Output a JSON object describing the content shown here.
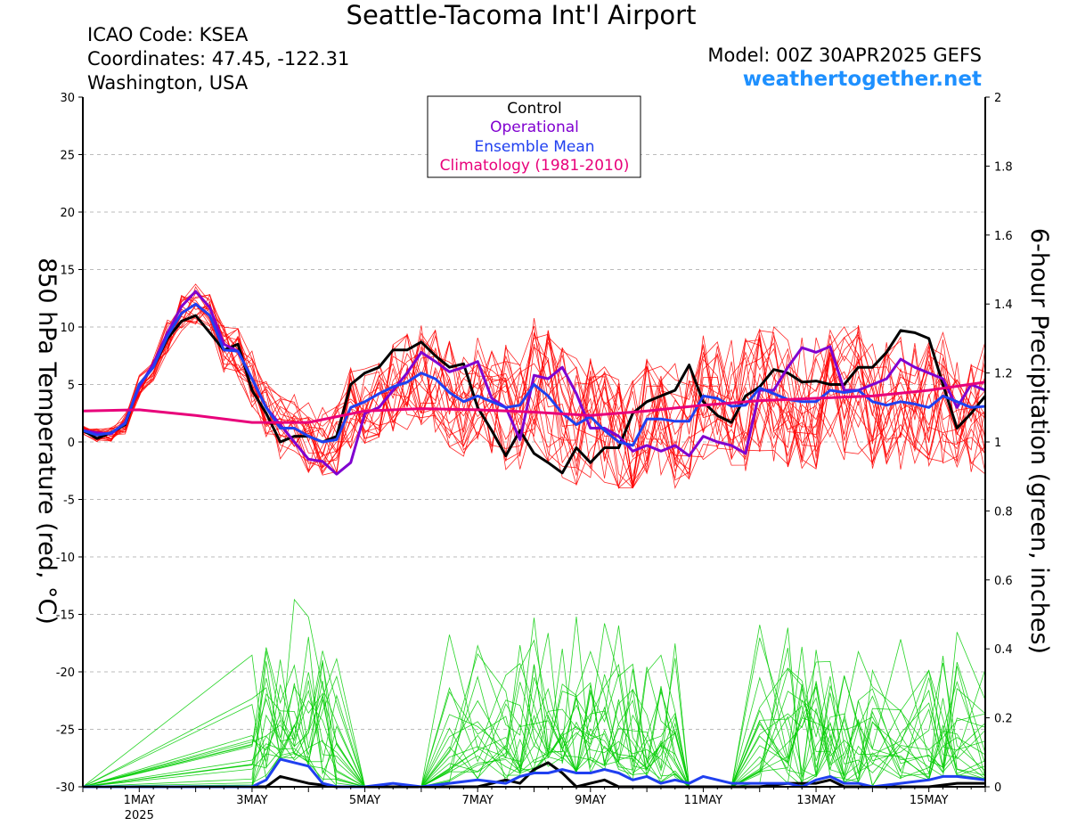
{
  "header": {
    "title": "Seattle-Tacoma Int'l Airport",
    "icao": "ICAO Code: KSEA",
    "coordinates": "Coordinates: 47.45, -122.31",
    "region": "Washington, USA",
    "model": "Model: 00Z 30APR2025 GEFS",
    "website": "weathertogether.net"
  },
  "colors": {
    "control": "#000000",
    "operational": "#8000d0",
    "ensemble_mean": "#2040f0",
    "climatology": "#e8007a",
    "ensemble_temp": "#ff0000",
    "ensemble_precip": "#00cc00",
    "website": "#1e90ff",
    "grid": "#bbbbbb"
  },
  "chart_data": {
    "type": "line",
    "x_unit": "days since 30APR2025 00Z",
    "xlim": [
      0,
      16
    ],
    "x_ticks": [
      {
        "x": 1,
        "label": "1MAY",
        "sublabel": "2025"
      },
      {
        "x": 3,
        "label": "3MAY"
      },
      {
        "x": 5,
        "label": "5MAY"
      },
      {
        "x": 7,
        "label": "7MAY"
      },
      {
        "x": 9,
        "label": "9MAY"
      },
      {
        "x": 11,
        "label": "11MAY"
      },
      {
        "x": 13,
        "label": "13MAY"
      },
      {
        "x": 15,
        "label": "15MAY"
      }
    ],
    "ylabel_left": "850 hPa Temperature (red, °C)",
    "ylim_left": [
      -30,
      30
    ],
    "yticks_left": [
      -30,
      -25,
      -20,
      -15,
      -10,
      -5,
      0,
      5,
      10,
      15,
      20,
      25,
      30
    ],
    "ylabel_right": "6-hour Precipitation (green, inches)",
    "ylim_right": [
      0,
      2
    ],
    "yticks_right": [
      0,
      0.2,
      0.4,
      0.6,
      0.8,
      1,
      1.2,
      1.4,
      1.6,
      1.8,
      2
    ],
    "grid": "dashed horizontal",
    "legend": {
      "position": "top-center",
      "entries": [
        "Control",
        "Operational",
        "Ensemble Mean",
        "Climatology (1981-2010)"
      ]
    },
    "temperature_series": [
      {
        "name": "Control",
        "x": [
          0,
          0.25,
          0.5,
          0.75,
          1,
          1.25,
          1.5,
          1.75,
          2,
          2.25,
          2.5,
          2.75,
          3,
          3.25,
          3.5,
          3.75,
          4,
          4.25,
          4.5,
          4.75,
          5,
          5.25,
          5.5,
          5.75,
          6,
          6.25,
          6.5,
          6.75,
          7,
          7.25,
          7.5,
          7.75,
          8,
          8.25,
          8.5,
          8.75,
          9,
          9.25,
          9.5,
          9.75,
          10,
          10.25,
          10.5,
          10.75,
          11,
          11.25,
          11.5,
          11.75,
          12,
          12.25,
          12.5,
          12.75,
          13,
          13.25,
          13.5,
          13.75,
          14,
          14.25,
          14.5,
          14.75,
          15,
          15.25,
          15.5,
          15.75,
          16
        ],
        "y": [
          1,
          0.3,
          0.8,
          1.5,
          5,
          6.5,
          9,
          10.5,
          11,
          9.5,
          8,
          8.5,
          4.5,
          2.5,
          0,
          0.5,
          0.5,
          0,
          0.5,
          5,
          6,
          6.5,
          8,
          8,
          8.7,
          7.5,
          6.5,
          6.8,
          3,
          1,
          -1.2,
          1,
          -1,
          -1.8,
          -2.7,
          -0.5,
          -1.8,
          -0.5,
          -0.5,
          2.5,
          3.5,
          4,
          4.5,
          6.7,
          3.5,
          2.3,
          1.7,
          4,
          4.8,
          6.3,
          6,
          5.2,
          5.3,
          5,
          5,
          6.5,
          6.5,
          7.8,
          9.7,
          9.5,
          9,
          5,
          1.2,
          2.5,
          4
        ]
      },
      {
        "name": "Operational",
        "x": [
          0,
          0.25,
          0.5,
          0.75,
          1,
          1.25,
          1.5,
          1.75,
          2,
          2.25,
          2.5,
          2.75,
          3,
          3.25,
          3.5,
          3.75,
          4,
          4.25,
          4.5,
          4.75,
          5,
          5.25,
          5.5,
          5.75,
          6,
          6.25,
          6.5,
          6.75,
          7,
          7.25,
          7.5,
          7.75,
          8,
          8.25,
          8.5,
          8.75,
          9,
          9.25,
          9.5,
          9.75,
          10,
          10.25,
          10.5,
          10.75,
          11,
          11.25,
          11.5,
          11.75,
          12,
          12.25,
          12.5,
          12.75,
          13,
          13.25,
          13.5,
          13.75,
          14,
          14.25,
          14.5,
          14.75,
          15,
          15.25,
          15.5,
          15.75,
          16
        ],
        "y": [
          1,
          0.8,
          0.7,
          1.7,
          4.8,
          6.8,
          9.5,
          11.8,
          13.1,
          11.7,
          8.5,
          7.9,
          5.5,
          3,
          1.5,
          0,
          -1.5,
          -1.7,
          -2.8,
          -1.8,
          2.5,
          3,
          4.5,
          6,
          7.8,
          7,
          6.1,
          6.5,
          7,
          3.8,
          3,
          0.2,
          5.8,
          5.5,
          6.5,
          4.2,
          1.2,
          1.2,
          0.5,
          -0.8,
          -0.3,
          -0.8,
          -0.3,
          -1.2,
          0.5,
          0,
          -0.3,
          -1,
          4.5,
          4.5,
          6.5,
          8.2,
          7.8,
          8.3,
          4.5,
          4.5,
          5,
          5.5,
          7.2,
          6.5,
          6,
          5.5,
          3,
          5,
          4.5
        ]
      },
      {
        "name": "Ensemble Mean",
        "x": [
          0,
          0.25,
          0.5,
          0.75,
          1,
          1.25,
          1.5,
          1.75,
          2,
          2.25,
          2.5,
          2.75,
          3,
          3.25,
          3.5,
          3.75,
          4,
          4.25,
          4.5,
          4.75,
          5,
          5.25,
          5.5,
          5.75,
          6,
          6.25,
          6.5,
          6.75,
          7,
          7.25,
          7.5,
          7.75,
          8,
          8.25,
          8.5,
          8.75,
          9,
          9.25,
          9.5,
          9.75,
          10,
          10.25,
          10.5,
          10.75,
          11,
          11.25,
          11.5,
          11.75,
          12,
          12.25,
          12.5,
          12.75,
          13,
          13.25,
          13.5,
          13.75,
          14,
          14.25,
          14.5,
          14.75,
          15,
          15.25,
          15.5,
          15.75,
          16
        ],
        "y": [
          1,
          0.6,
          0.8,
          1.6,
          5,
          6.5,
          9.2,
          11.2,
          12,
          11,
          8,
          7.9,
          5.5,
          3,
          1.2,
          1.2,
          0.5,
          0,
          0.2,
          3,
          3.5,
          4.2,
          4.8,
          5.2,
          6,
          5.5,
          4.3,
          3.5,
          4,
          3.5,
          3,
          3.2,
          5,
          4,
          2.5,
          1.5,
          2.2,
          1,
          0,
          -0.3,
          2,
          2,
          1.8,
          1.8,
          4,
          3.8,
          3.1,
          3.2,
          4.7,
          4.2,
          3.7,
          3.5,
          3.5,
          4.5,
          4.3,
          4.5,
          3.5,
          3.2,
          3.5,
          3.3,
          3,
          4,
          3.5,
          3,
          3.1
        ]
      },
      {
        "name": "Climatology (1981-2010)",
        "x": [
          0,
          1,
          2,
          3,
          4,
          5,
          6,
          7,
          8,
          9,
          10,
          11,
          12,
          13,
          14,
          15,
          16
        ],
        "y": [
          2.7,
          2.8,
          2.3,
          1.7,
          1.7,
          2.7,
          2.9,
          2.8,
          2.6,
          2.3,
          2.7,
          3.2,
          3.6,
          3.8,
          4,
          4.5,
          5.2
        ]
      }
    ],
    "precipitation_series": [
      {
        "name": "Control",
        "x": [
          0,
          3,
          3.25,
          3.5,
          4,
          4.5,
          7,
          7.5,
          7.75,
          8,
          8.25,
          8.5,
          8.75,
          9,
          9.25,
          9.5,
          12,
          12.5,
          13,
          13.25,
          13.5,
          15,
          15.5,
          16
        ],
        "y": [
          0,
          0,
          0,
          0.03,
          0.01,
          0,
          0,
          0.02,
          0.01,
          0.05,
          0.07,
          0.04,
          0,
          0.01,
          0.02,
          0,
          0,
          0.01,
          0.01,
          0.02,
          0,
          0,
          0.01,
          0.01
        ]
      },
      {
        "name": "Ensemble Mean",
        "x": [
          0,
          3,
          3.25,
          3.5,
          3.75,
          4,
          4.25,
          4.5,
          5,
          5.5,
          6,
          6.5,
          7,
          7.5,
          7.75,
          8,
          8.25,
          8.5,
          8.75,
          9,
          9.25,
          9.5,
          9.75,
          10,
          10.25,
          10.5,
          10.75,
          11,
          11.5,
          12,
          12.5,
          12.75,
          13,
          13.25,
          13.5,
          13.75,
          14,
          14.5,
          15,
          15.25,
          15.5,
          16
        ],
        "y": [
          0,
          0,
          0.02,
          0.08,
          0.07,
          0.06,
          0.01,
          0,
          0,
          0.01,
          0,
          0.01,
          0.02,
          0.01,
          0.03,
          0.04,
          0.04,
          0.05,
          0.04,
          0.04,
          0.05,
          0.04,
          0.02,
          0.03,
          0.01,
          0.02,
          0.01,
          0.03,
          0.01,
          0.01,
          0.01,
          0,
          0.02,
          0.03,
          0.01,
          0.01,
          0,
          0.01,
          0.02,
          0.03,
          0.03,
          0.02
        ]
      }
    ]
  }
}
